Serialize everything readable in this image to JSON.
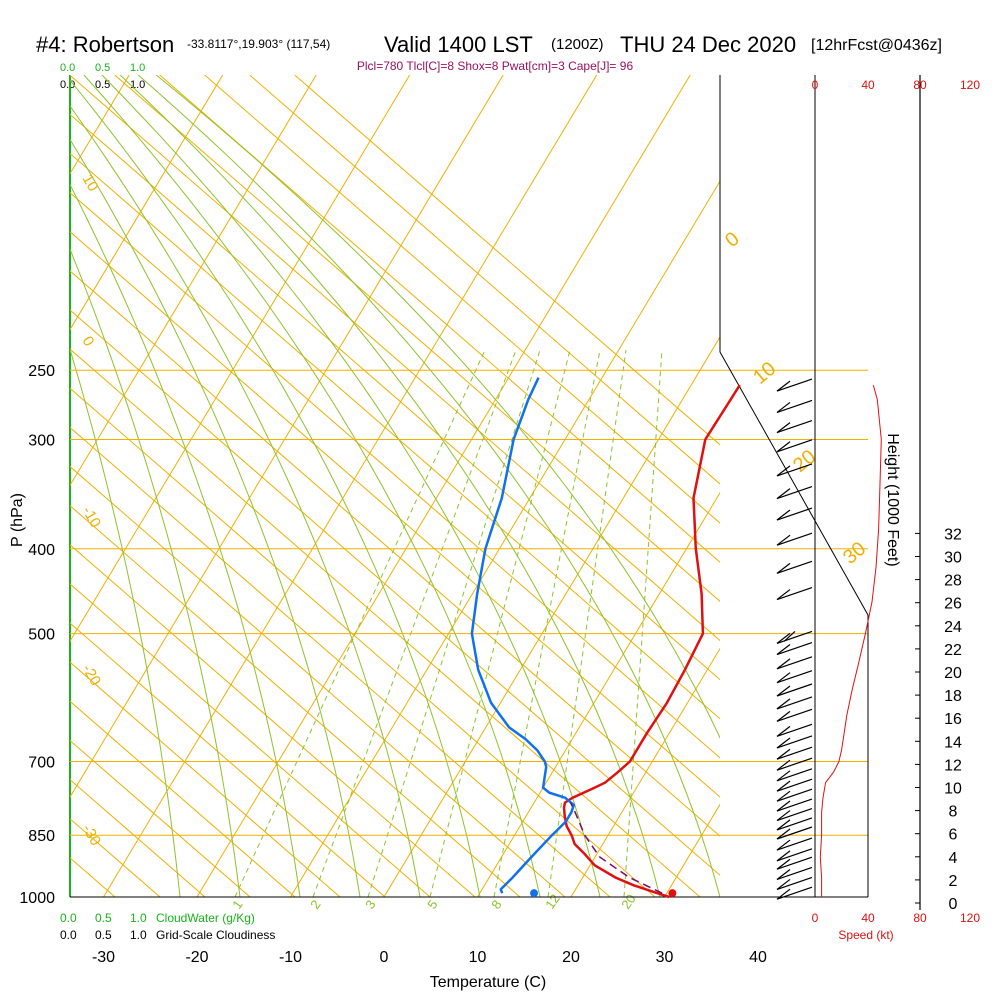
{
  "title": {
    "station": "#4: Robertson",
    "coords": "-33.8117°,19.903° (117,54)",
    "valid": "Valid 1400 LST",
    "utc": "(1200Z)",
    "date": "THU 24 Dec 2020",
    "forecast": "[12hrFcst@0436z]"
  },
  "params_line": "Plcl=780 Tlcl[C]=8 Shox=8 Pwat[cm]=3 Cape[J]= 96",
  "colors": {
    "temp": "#e01010",
    "dewpoint": "#1070ee",
    "parcel": "#7a0a6a",
    "isotherm": "#f0b000",
    "mixing_ratio": "#8ec22a",
    "cloud": "#18b418",
    "text": "#000000",
    "wind_scale": "#e01010"
  },
  "cloud_scale": {
    "values": [
      "0.0",
      "0.5",
      "1.0"
    ],
    "cloud_water_label": "CloudWater (g/Kg)",
    "cloudiness_label": "Grid-Scale Cloudiness"
  },
  "wind_speed_scale": {
    "ticks": [
      "0",
      "40",
      "80",
      "120"
    ],
    "label": "Speed (kt)"
  },
  "chart_data": {
    "type": "line",
    "title": "#4: Robertson Valid 1400 LST THU 24 Dec 2020",
    "xlabel": "Temperature (C)",
    "ylabel": "P (hPa)",
    "xlim": [
      -35,
      45
    ],
    "pressure_ticks": [
      "250",
      "300",
      "400",
      "500",
      "700",
      "850",
      "1000"
    ],
    "temp_ticks": [
      "-30",
      "-20",
      "-10",
      "0",
      "10",
      "20",
      "30",
      "40"
    ],
    "height_axis": {
      "label": "Height (1000 Feet)",
      "ticks": [
        "0",
        "2",
        "4",
        "6",
        "8",
        "10",
        "12",
        "14",
        "16",
        "18",
        "20",
        "22",
        "24",
        "26",
        "28",
        "30",
        "32"
      ]
    },
    "series": [
      {
        "name": "Temperature",
        "points": [
          [
            1000,
            30.5
          ],
          [
            990,
            29
          ],
          [
            970,
            26
          ],
          [
            950,
            23.5
          ],
          [
            920,
            20.5
          ],
          [
            890,
            18.5
          ],
          [
            870,
            17
          ],
          [
            850,
            16.1
          ],
          [
            830,
            15
          ],
          [
            810,
            14.2
          ],
          [
            790,
            13.5
          ],
          [
            780,
            13.3
          ],
          [
            770,
            13.8
          ],
          [
            750,
            15.5
          ],
          [
            740,
            16.3
          ],
          [
            720,
            17
          ],
          [
            700,
            17.6
          ],
          [
            650,
            17.6
          ],
          [
            600,
            17.8
          ],
          [
            550,
            17.6
          ],
          [
            500,
            17.2
          ],
          [
            450,
            14.5
          ],
          [
            400,
            11
          ],
          [
            350,
            7.5
          ],
          [
            300,
            5
          ],
          [
            260,
            5.2
          ]
        ]
      },
      {
        "name": "Dewpoint",
        "points": [
          [
            990,
            12.4
          ],
          [
            980,
            12
          ],
          [
            950,
            12.5
          ],
          [
            900,
            13.2
          ],
          [
            850,
            14
          ],
          [
            820,
            14.6
          ],
          [
            800,
            14.6
          ],
          [
            785,
            14.4
          ],
          [
            770,
            13
          ],
          [
            760,
            11
          ],
          [
            750,
            10
          ],
          [
            730,
            9.5
          ],
          [
            710,
            9
          ],
          [
            700,
            8.5
          ],
          [
            680,
            7
          ],
          [
            660,
            5
          ],
          [
            640,
            2.5
          ],
          [
            600,
            -1
          ],
          [
            550,
            -4.5
          ],
          [
            500,
            -7.5
          ],
          [
            450,
            -9.5
          ],
          [
            400,
            -11.5
          ],
          [
            350,
            -13
          ],
          [
            300,
            -15.5
          ],
          [
            270,
            -16.5
          ],
          [
            255,
            -16.8
          ]
        ]
      },
      {
        "name": "Parcel",
        "points": [
          [
            990,
            29.5
          ],
          [
            950,
            25
          ],
          [
            900,
            20.5
          ],
          [
            850,
            17.5
          ],
          [
            800,
            15
          ],
          [
            780,
            13.9
          ]
        ]
      }
    ],
    "surface_markers": {
      "temperature": 30.6,
      "dewpoint": 15.8
    },
    "isotherm_labels": [
      "-30",
      "-20",
      "-10",
      "0",
      "10",
      "20",
      "30"
    ],
    "isotherms": [
      -30,
      -20,
      -10,
      0,
      10,
      20,
      30
    ],
    "upper_isotherm_labels": [
      "10",
      "0",
      "-10",
      "-20",
      "-30"
    ],
    "mixing_ratio_labels": [
      "1",
      "2",
      "3",
      "5",
      "8",
      "12",
      "20"
    ],
    "winds": {
      "pressure": [
        990,
        965,
        940,
        915,
        895,
        870,
        845,
        825,
        805,
        785,
        765,
        745,
        725,
        705,
        685,
        665,
        645,
        620,
        600,
        580,
        560,
        540,
        520,
        505,
        450,
        420,
        390,
        365,
        345,
        325,
        305,
        290,
        275,
        260
      ],
      "speed_kt": [
        10,
        10,
        10,
        10,
        10,
        10,
        10,
        10,
        10,
        10,
        10,
        10,
        10,
        10,
        10,
        10,
        10,
        10,
        10,
        10,
        10,
        10,
        10,
        20,
        10,
        10,
        10,
        10,
        10,
        10,
        10,
        10,
        10,
        10
      ],
      "speed_profile_kt": [
        [
          1000,
          5
        ],
        [
          950,
          5
        ],
        [
          900,
          4
        ],
        [
          850,
          5
        ],
        [
          800,
          5
        ],
        [
          770,
          6
        ],
        [
          740,
          8
        ],
        [
          720,
          14
        ],
        [
          700,
          18
        ],
        [
          680,
          20
        ],
        [
          650,
          22
        ],
        [
          620,
          24
        ],
        [
          580,
          28
        ],
        [
          540,
          33
        ],
        [
          500,
          38
        ],
        [
          460,
          43
        ],
        [
          420,
          46
        ],
        [
          380,
          48
        ],
        [
          340,
          49
        ],
        [
          300,
          50
        ],
        [
          270,
          47
        ],
        [
          260,
          44
        ]
      ]
    }
  }
}
